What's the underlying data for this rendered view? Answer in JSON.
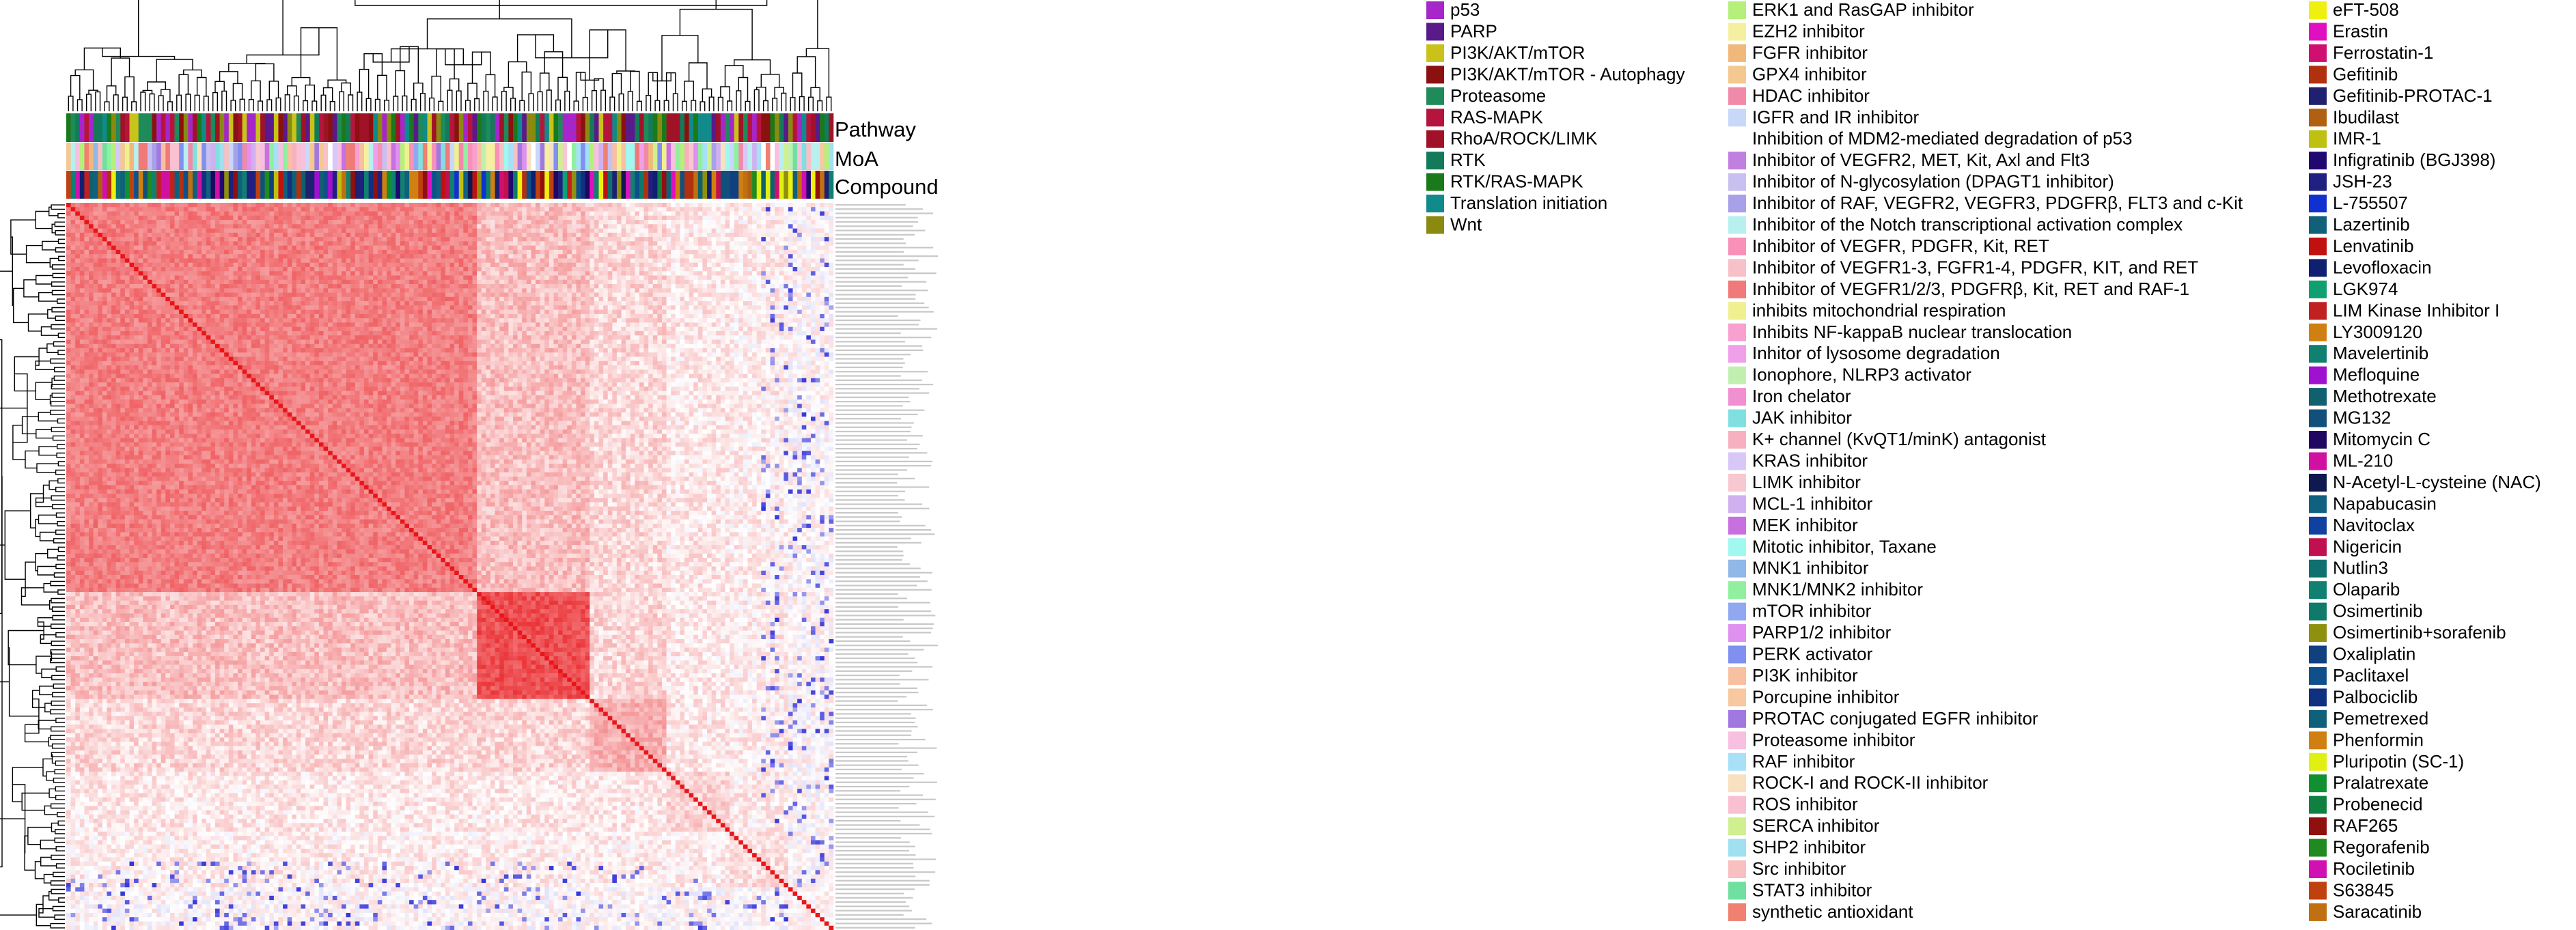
{
  "chart_data": {
    "type": "heatmap",
    "title": "",
    "description_tracks": [
      "Pathway",
      "MoA",
      "Compound"
    ],
    "color_scale": {
      "low": "#1f1fd6",
      "mid": "#ffffff",
      "high": "#e8161a"
    },
    "cluster_blocks": [
      {
        "start": 0,
        "end": 0.53,
        "value": 0.55
      },
      {
        "start": 0.53,
        "end": 0.68,
        "value": 0.75
      },
      {
        "start": 0.68,
        "end": 0.78,
        "value": 0.35
      },
      {
        "start": 0.78,
        "end": 0.86,
        "value": 0.2
      },
      {
        "start": 0.86,
        "end": 0.94,
        "value": 0.15
      },
      {
        "start": 0.94,
        "end": 1.0,
        "value": 0.05
      }
    ],
    "row_labels_note": "",
    "legend_pathway": [
      {
        "label": "p53",
        "color": "#a626c9"
      },
      {
        "label": "PARP",
        "color": "#5a1a8a"
      },
      {
        "label": "PI3K/AKT/mTOR",
        "color": "#c9c21a"
      },
      {
        "label": "PI3K/AKT/mTOR - Autophagy",
        "color": "#8b1010"
      },
      {
        "label": "Proteasome",
        "color": "#1f8a5a"
      },
      {
        "label": "RAS-MAPK",
        "color": "#b5153c"
      },
      {
        "label": "RhoA/ROCK/LIMK",
        "color": "#a01228"
      },
      {
        "label": "RTK",
        "color": "#137a5a"
      },
      {
        "label": "RTK/RAS-MAPK",
        "color": "#1a7a1a"
      },
      {
        "label": "Translation initiation",
        "color": "#108a8a"
      },
      {
        "label": "Wnt",
        "color": "#8a8a10"
      }
    ],
    "legend_moa": [
      {
        "label": "ERK1 and RasGAP inhibitor",
        "color": "#b4f07a"
      },
      {
        "label": "EZH2 inhibitor",
        "color": "#f5f0a0"
      },
      {
        "label": "FGFR inhibitor",
        "color": "#f0b87a"
      },
      {
        "label": "GPX4 inhibitor",
        "color": "#f5c890"
      },
      {
        "label": "HDAC inhibitor",
        "color": "#f08aa8"
      },
      {
        "label": "IGFR and IR inhibitor",
        "color": "#c8d8f8"
      },
      {
        "label": "Inhibition of MDM2-mediated degradation of p53",
        "color": "#ffffff"
      },
      {
        "label": "Inhibitor of  VEGFR2, MET, Kit, Axl and Flt3",
        "color": "#c080e0"
      },
      {
        "label": "Inhibitor of N-glycosylation (DPAGT1 inhibitor)",
        "color": "#c8c0f0"
      },
      {
        "label": "Inhibitor of RAF, VEGFR2, VEGFR3, PDGFRβ, FLT3 and c-Kit",
        "color": "#a8a0e8"
      },
      {
        "label": "Inhibitor of the Notch transcriptional activation complex",
        "color": "#b8f0f0"
      },
      {
        "label": "Inhibitor of VEGFR, PDGFR, Kit, RET",
        "color": "#f890b8"
      },
      {
        "label": "Inhibitor of VEGFR1-3, FGFR1-4, PDGFR, KIT, and RET",
        "color": "#f8c0c8"
      },
      {
        "label": "Inhibitor of VEGFR1/2/3, PDGFRβ, Kit, RET and RAF-1",
        "color": "#f07a7a"
      },
      {
        "label": "inhibits  mitochondrial respiration",
        "color": "#f0f090"
      },
      {
        "label": "Inhibits NF-kappaB nuclear translocation",
        "color": "#f8a0d0"
      },
      {
        "label": "Inhitor of lysosome degradation",
        "color": "#f0a0e8"
      },
      {
        "label": "Ionophore, NLRP3 activator",
        "color": "#c0f0b0"
      },
      {
        "label": "Iron chelator",
        "color": "#f090d0"
      },
      {
        "label": "JAK inhibitor",
        "color": "#80e0e0"
      },
      {
        "label": "K+ channel (KvQT1/minK) antagonist",
        "color": "#f8b0c0"
      },
      {
        "label": "KRAS inhibitor",
        "color": "#d8c8f8"
      },
      {
        "label": "LIMK inhibitor",
        "color": "#f8c8d0"
      },
      {
        "label": "MCL-1 inhibitor",
        "color": "#d0b0f0"
      },
      {
        "label": "MEK inhibitor",
        "color": "#c870e0"
      },
      {
        "label": "Mitotic inhibitor, Taxane",
        "color": "#a0f8f0"
      },
      {
        "label": "MNK1 inhibitor",
        "color": "#90b8e8"
      },
      {
        "label": "MNK1/MNK2 inhibitor",
        "color": "#90f0a0"
      },
      {
        "label": "mTOR inhibitor",
        "color": "#90a8f0"
      },
      {
        "label": "PARP1/2 inhibitor",
        "color": "#e090f0"
      },
      {
        "label": "PERK activator",
        "color": "#8090f0"
      },
      {
        "label": "PI3K inhibitor",
        "color": "#f8c0a0"
      },
      {
        "label": "Porcupine inhibitor",
        "color": "#f8c8a0"
      },
      {
        "label": "PROTAC conjugated EGFR inhibitor",
        "color": "#a078e0"
      },
      {
        "label": "Proteasome inhibitor",
        "color": "#f8c0e0"
      },
      {
        "label": "RAF  inhibitor",
        "color": "#a8e0f8"
      },
      {
        "label": "ROCK-I and ROCK-II inhibitor",
        "color": "#f8e0c0"
      },
      {
        "label": "ROS inhibitor",
        "color": "#f8c0d0"
      },
      {
        "label": "SERCA inhibitor",
        "color": "#d0f090"
      },
      {
        "label": "SHP2 inhibitor",
        "color": "#a0e0f0"
      },
      {
        "label": "Src inhibitor",
        "color": "#f8c0c0"
      },
      {
        "label": "STAT3 inhibitor",
        "color": "#70e0a0"
      },
      {
        "label": "synthetic antioxidant",
        "color": "#f08070"
      }
    ],
    "legend_compound": [
      {
        "label": "eFT-508",
        "color": "#f0f010"
      },
      {
        "label": "Erastin",
        "color": "#e010c0"
      },
      {
        "label": "Ferrostatin-1",
        "color": "#d01070"
      },
      {
        "label": "Gefitinib",
        "color": "#b03010"
      },
      {
        "label": "Gefitinib-PROTAC-1",
        "color": "#202070"
      },
      {
        "label": "Ibudilast",
        "color": "#b06010"
      },
      {
        "label": "IMR-1",
        "color": "#c0c010"
      },
      {
        "label": "Infigratinib (BGJ398)",
        "color": "#200870"
      },
      {
        "label": "JSH-23",
        "color": "#202080"
      },
      {
        "label": "L-755507",
        "color": "#1030d0"
      },
      {
        "label": "Lazertinib",
        "color": "#10607a"
      },
      {
        "label": "Lenvatinib",
        "color": "#c01010"
      },
      {
        "label": "Levofloxacin",
        "color": "#102070"
      },
      {
        "label": "LGK974",
        "color": "#10a070"
      },
      {
        "label": "LIM Kinase Inhibitor I",
        "color": "#c02020"
      },
      {
        "label": "LY3009120",
        "color": "#d08010"
      },
      {
        "label": "Mavelertinib",
        "color": "#108070"
      },
      {
        "label": "Mefloquine",
        "color": "#a010d0"
      },
      {
        "label": "Methotrexate",
        "color": "#106070"
      },
      {
        "label": "MG132",
        "color": "#10507a"
      },
      {
        "label": "Mitomycin C",
        "color": "#200860"
      },
      {
        "label": "ML-210",
        "color": "#d010a0"
      },
      {
        "label": "N-Acetyl-L-cysteine (NAC)",
        "color": "#101850"
      },
      {
        "label": "Napabucasin",
        "color": "#106080"
      },
      {
        "label": "Navitoclax",
        "color": "#1040a0"
      },
      {
        "label": "Nigericin",
        "color": "#c01050"
      },
      {
        "label": "Nutlin3",
        "color": "#107070"
      },
      {
        "label": "Olaparib",
        "color": "#108070"
      },
      {
        "label": "Osimertinib",
        "color": "#107a6a"
      },
      {
        "label": "Osimertinib+sorafenib",
        "color": "#909010"
      },
      {
        "label": "Oxaliplatin",
        "color": "#104080"
      },
      {
        "label": "Paclitaxel",
        "color": "#10508a"
      },
      {
        "label": "Palbociclib",
        "color": "#103080"
      },
      {
        "label": "Pemetrexed",
        "color": "#10607a"
      },
      {
        "label": "Phenformin",
        "color": "#d08010"
      },
      {
        "label": "Pluripotin (SC-1)",
        "color": "#e0f010"
      },
      {
        "label": "Pralatrexate",
        "color": "#109030"
      },
      {
        "label": "Probenecid",
        "color": "#108040"
      },
      {
        "label": "RAF265",
        "color": "#901010"
      },
      {
        "label": "Regorafenib",
        "color": "#208a20"
      },
      {
        "label": "Rociletinib",
        "color": "#d010b0"
      },
      {
        "label": "S63845",
        "color": "#c04010"
      },
      {
        "label": "Saracatinib",
        "color": "#c07010"
      }
    ]
  }
}
